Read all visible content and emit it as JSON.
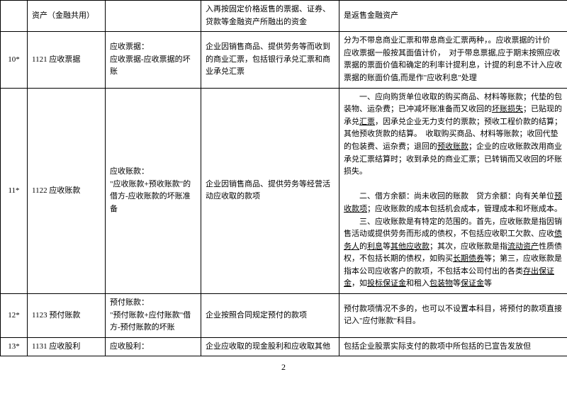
{
  "rows": [
    {
      "idx": "",
      "code": "资产（金融共用）",
      "sub": "",
      "desc": "入再按固定价格返售的票据、证券、贷款等金融资产所融出的资金",
      "note": "是返售金融资产"
    },
    {
      "idx": "10*",
      "code": "1121  应收票据",
      "sub": "应收票据：\n应收票据-应收票据的坏账",
      "desc": "企业因销售商品、提供劳务等而收到的商业汇票，包括银行承兑汇票和商业承兑汇票",
      "note": "分为不带息商业汇票和带息商业汇票两种，。应收票据的计价　应收票据一般按其面值计价，　对于带息票据,应于期末按照应收票据的票面价值和确定的利率计提利息，计提的利息不计入应收票据的账面价值,而是作\"应收利息\"处理"
    },
    {
      "idx": "11*",
      "code": "1122  应收账款",
      "sub": "应收账款：\n\"应收账款+预收账款\"的借方-应收账款的坏账准备",
      "desc": "企业因销售商品、提供劳务等经营活动应收取的款项",
      "note_html": "<span class='indent'></span>一、应向购货单位收取的购买商品、材料等账款；代垫的包装物、运杂费；已冲减坏账准备而又收回的<u>坏账损失</u>；已贴现的承兑<u>汇票</u>，因承兑企业无力支付的票款；预收工程价款的结算；其他预收货款的结算。　收取购买商品、材料等账款；收回代垫的包装费、运杂费；退回的<u>预收账款</u>；企业的应收账款改用商业承兑汇票结算时；收到承兑的商业汇票；已转销而又收回的坏账损失。<br><br><span class='indent'></span>二、借方余额：尚未收回的账款　贷方余额：向有关单位<u>预收款项</u>；应收账款的成本包括机会成本，管理成本和坏账成本。<br><span class='indent'></span>三、应收账款是有特定的范围的。首先，应收账款是指因销售活动或提供劳务而形成的债权，不包括应收职工欠款、应收<u>债务人</u>的<u>利息</u>等<u>其他应收款</u>；其次，应收账款是指<u>流动资产</u>性质债权，不包括长期的债权，如购买<u>长期债券</u>等；第三，应收账款是指本公司应收客户的款项，不包括本公司付出的各类<u>存出保证金</u>，如<u>投标保证金</u>和租入<u>包装物</u>等<u>保证金</u>等"
    },
    {
      "idx": "12*",
      "code": "1123  预付账款",
      "sub": "预付账款：\n\"预付账款+应付账款\"借方-预付账款的坏账",
      "desc": "企业按照合同规定预付的款项",
      "note": "预付款项情况不多的，也可以不设置本科目，将预付的款项直接记入\"应付账款\"科目。"
    },
    {
      "idx": "13*",
      "code": "1131  应收股利",
      "sub": "应收股利：",
      "desc": "企业应收取的现金股利和应收取其他",
      "note": "包括企业股票实际支付的款项中所包括的已宣告发放但"
    }
  ],
  "page_number": "2"
}
